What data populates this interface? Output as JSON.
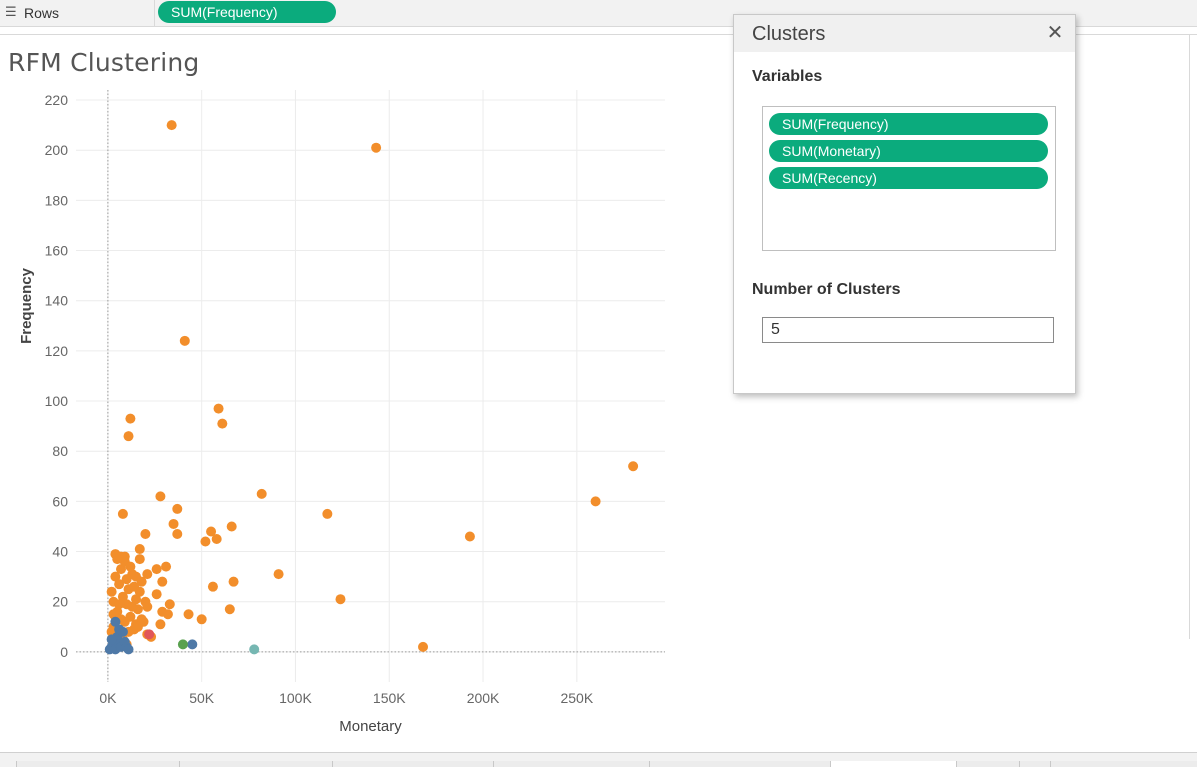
{
  "shelf": {
    "rows_label": "Rows",
    "rows_icon": "list-icon",
    "rows_pill": "SUM(Frequency)"
  },
  "chart_title": "RFM Clustering",
  "clusters_dialog": {
    "title": "Clusters",
    "close_icon": "close-icon",
    "variables_label": "Variables",
    "variables": [
      "SUM(Frequency)",
      "SUM(Monetary)",
      "SUM(Recency)"
    ],
    "num_clusters_label": "Number of Clusters",
    "num_clusters_value": "5"
  },
  "chart_data": {
    "type": "scatter",
    "title": "RFM Clustering",
    "xlabel": "Monetary",
    "ylabel": "Frequency",
    "xlim": [
      -17000,
      297000
    ],
    "ylim": [
      -12,
      224
    ],
    "x_ticks": [
      0,
      50000,
      100000,
      150000,
      200000,
      250000
    ],
    "x_tick_labels": [
      "0K",
      "50K",
      "100K",
      "150K",
      "200K",
      "250K"
    ],
    "y_ticks": [
      0,
      20,
      40,
      60,
      80,
      100,
      120,
      140,
      160,
      180,
      200,
      220
    ],
    "y_tick_labels": [
      "0",
      "20",
      "40",
      "60",
      "80",
      "100",
      "120",
      "140",
      "160",
      "180",
      "200",
      "220"
    ],
    "grid": true,
    "colors": {
      "orange": "#f28e2b",
      "blue": "#4e79a7",
      "green": "#59a14f",
      "teal": "#76b7b2",
      "red": "#e15759"
    },
    "series": [
      {
        "color": "orange",
        "points": [
          [
            34000,
            210
          ],
          [
            143000,
            201
          ],
          [
            41000,
            124
          ],
          [
            59000,
            97
          ],
          [
            61000,
            91
          ],
          [
            12000,
            93
          ],
          [
            11000,
            86
          ],
          [
            280000,
            74
          ],
          [
            260000,
            60
          ],
          [
            193000,
            46
          ],
          [
            82000,
            63
          ],
          [
            28000,
            62
          ],
          [
            37000,
            57
          ],
          [
            8000,
            55
          ],
          [
            117000,
            55
          ],
          [
            35000,
            51
          ],
          [
            55000,
            48
          ],
          [
            66000,
            50
          ],
          [
            20000,
            47
          ],
          [
            37000,
            47
          ],
          [
            52000,
            44
          ],
          [
            58000,
            45
          ],
          [
            17000,
            41
          ],
          [
            4000,
            39
          ],
          [
            9000,
            38
          ],
          [
            17000,
            37
          ],
          [
            26000,
            33
          ],
          [
            31000,
            34
          ],
          [
            91000,
            31
          ],
          [
            21000,
            31
          ],
          [
            29000,
            28
          ],
          [
            67000,
            28
          ],
          [
            56000,
            26
          ],
          [
            26000,
            23
          ],
          [
            124000,
            21
          ],
          [
            21000,
            18
          ],
          [
            33000,
            19
          ],
          [
            65000,
            17
          ],
          [
            43000,
            15
          ],
          [
            29000,
            16
          ],
          [
            32000,
            15
          ],
          [
            50000,
            13
          ],
          [
            28000,
            11
          ],
          [
            21000,
            7
          ],
          [
            168000,
            2
          ],
          [
            2000,
            24
          ],
          [
            3000,
            20
          ],
          [
            4000,
            30
          ],
          [
            5000,
            16
          ],
          [
            6000,
            27
          ],
          [
            7000,
            33
          ],
          [
            8000,
            22
          ],
          [
            9000,
            12
          ],
          [
            10000,
            19
          ],
          [
            11000,
            25
          ],
          [
            12000,
            14
          ],
          [
            13000,
            31
          ],
          [
            14000,
            9
          ],
          [
            15000,
            21
          ],
          [
            16000,
            17
          ],
          [
            18000,
            28
          ],
          [
            19000,
            12
          ],
          [
            3000,
            10
          ],
          [
            5000,
            7
          ],
          [
            7000,
            13
          ],
          [
            9000,
            36
          ],
          [
            11000,
            8
          ],
          [
            13000,
            18
          ],
          [
            15000,
            11
          ],
          [
            17000,
            24
          ],
          [
            4000,
            14
          ],
          [
            6000,
            19
          ],
          [
            8000,
            5
          ],
          [
            10000,
            29
          ],
          [
            12000,
            34
          ],
          [
            14000,
            26
          ],
          [
            16000,
            10
          ],
          [
            6000,
            4
          ],
          [
            2000,
            8
          ],
          [
            3000,
            15
          ],
          [
            7000,
            38
          ],
          [
            10000,
            3
          ],
          [
            15000,
            30
          ],
          [
            18000,
            13
          ],
          [
            20000,
            20
          ],
          [
            23000,
            6
          ],
          [
            5000,
            37
          ]
        ]
      },
      {
        "color": "blue",
        "points": [
          [
            45000,
            3
          ],
          [
            1000,
            1
          ],
          [
            2000,
            2
          ],
          [
            3000,
            4
          ],
          [
            4000,
            1
          ],
          [
            5000,
            6
          ],
          [
            6000,
            3
          ],
          [
            7000,
            2
          ],
          [
            8000,
            8
          ],
          [
            9000,
            4
          ],
          [
            10000,
            2
          ],
          [
            4000,
            12
          ],
          [
            6000,
            9
          ],
          [
            2000,
            5
          ],
          [
            11000,
            1
          ]
        ]
      },
      {
        "color": "green",
        "points": [
          [
            40000,
            3
          ]
        ]
      },
      {
        "color": "teal",
        "points": [
          [
            78000,
            1
          ]
        ]
      },
      {
        "color": "red",
        "points": [
          [
            22000,
            7
          ]
        ]
      }
    ]
  }
}
